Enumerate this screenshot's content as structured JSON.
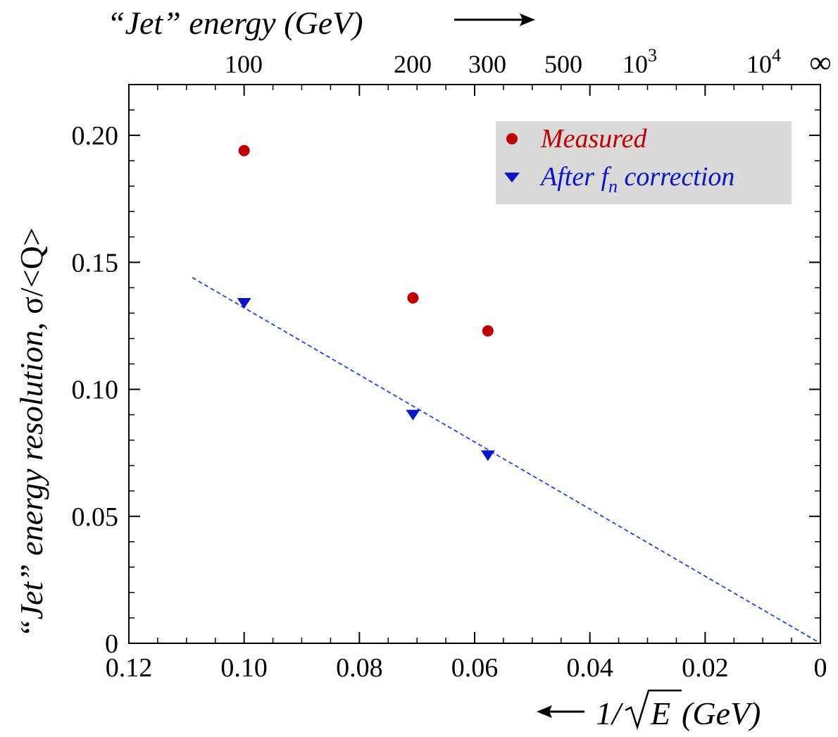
{
  "colors": {
    "measured": "#c00000",
    "corrected": "#0a14c8",
    "fit_line": "#2040e0",
    "legend_bg": "#d9d9d9",
    "axis": "#000000"
  },
  "texts": {
    "top_axis_title": "“Jet” energy (GeV)",
    "left_axis_title_main": "“Jet” energy resolution, ",
    "left_axis_title_sym": "σ/<Q>",
    "bottom_axis_title_pre": "1/",
    "bottom_axis_title_rad": "E",
    "bottom_axis_title_post": " (GeV)",
    "legend_measured": "Measured",
    "legend_corrected_a": "After ",
    "legend_corrected_f": "f",
    "legend_corrected_n": "n",
    "legend_corrected_b": " correction",
    "top_ticks": [
      "100",
      "200",
      "300",
      "500",
      "10",
      "10",
      "∞"
    ],
    "top_exps": [
      "3",
      "4"
    ]
  },
  "chart_data": {
    "type": "scatter",
    "xlabel": "1/√E (GeV)",
    "ylabel": "“Jet” energy resolution, σ/<Q>",
    "top_xlabel": "“Jet” energy (GeV)",
    "xlim": [
      0.12,
      0
    ],
    "ylim": [
      0,
      0.22
    ],
    "x_ticks": [
      "0.12",
      "0.10",
      "0.08",
      "0.06",
      "0.04",
      "0.02",
      "0"
    ],
    "y_ticks": [
      "0",
      "0.05",
      "0.10",
      "0.15",
      "0.20"
    ],
    "top_tick_energies_gev": [
      100,
      200,
      300,
      500,
      1000,
      10000
    ],
    "legend_position": "top-right",
    "grid": false,
    "series": [
      {
        "name": "Measured",
        "marker": "circle",
        "x": [
          0.1,
          0.0707,
          0.0577
        ],
        "y": [
          0.194,
          0.136,
          0.123
        ]
      },
      {
        "name": "After fn correction",
        "marker": "triangle-down",
        "x": [
          0.1,
          0.0707,
          0.0577
        ],
        "y": [
          0.134,
          0.09,
          0.074
        ]
      }
    ],
    "fit_line": {
      "style": "dashed",
      "x": [
        0.109,
        0
      ],
      "y": [
        0.144,
        0
      ]
    }
  }
}
